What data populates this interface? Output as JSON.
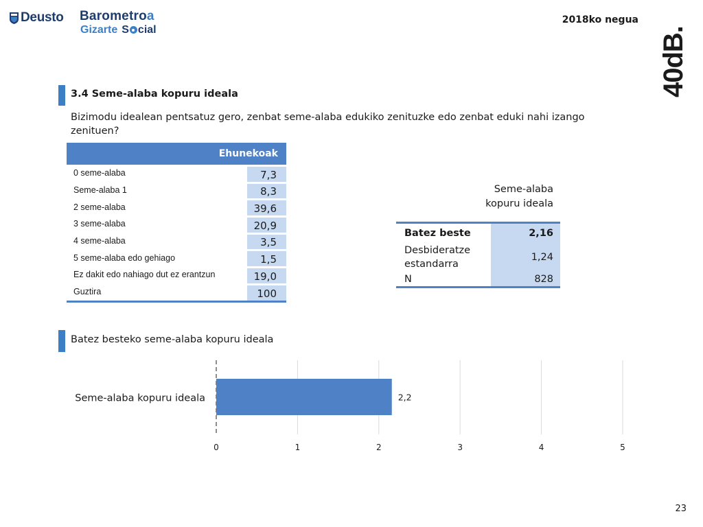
{
  "header": {
    "deusto_logo": "Deusto",
    "barometer_logo_part1": "Barometro",
    "barometer_logo_part2": "a",
    "barometer_logo_line2_a": "Gizarte",
    "barometer_logo_line2_b": "cial",
    "period": "2018ko negua",
    "brand": "40dB."
  },
  "section1": {
    "title": "3.4 Seme-alaba kopuru ideala",
    "question": "Bizimodu idealean pentsatuz gero, zenbat seme-alaba edukiko zenituzke edo zenbat eduki nahi izango zenituen?"
  },
  "freq_table": {
    "header": "Ehunekoak",
    "rows": [
      {
        "label": "0 seme-alaba",
        "value": "7,3"
      },
      {
        "label": "Seme-alaba 1",
        "value": "8,3"
      },
      {
        "label": "2 seme-alaba",
        "value": "39,6"
      },
      {
        "label": "3 seme-alaba",
        "value": "20,9"
      },
      {
        "label": "4 seme-alaba",
        "value": "3,5"
      },
      {
        "label": "5 seme-alaba edo gehiago",
        "value": "1,5"
      },
      {
        "label": "Ez dakit edo nahiago dut ez erantzun",
        "value": "19,0"
      },
      {
        "label": "Guztira",
        "value": "100"
      }
    ]
  },
  "stats": {
    "caption_line1": "Seme-alaba",
    "caption_line2": "kopuru ideala",
    "rows": [
      {
        "label": "Batez beste",
        "value": "2,16",
        "bold": true
      },
      {
        "label": "Desbideratze estandarra",
        "value": "1,24",
        "bold": false
      },
      {
        "label": "N",
        "value": "828",
        "bold": false
      }
    ]
  },
  "section2": {
    "title": "Batez besteko seme-alaba kopuru ideala"
  },
  "chart_data": {
    "type": "bar",
    "orientation": "horizontal",
    "categories": [
      "Seme-alaba kopuru ideala"
    ],
    "values": [
      2.16
    ],
    "data_labels": [
      "2,2"
    ],
    "xlim": [
      0,
      5
    ],
    "xticks": [
      "0",
      "1",
      "2",
      "3",
      "4",
      "5"
    ],
    "grid": true,
    "bar_color": "#4f81c7"
  },
  "page_number": "23"
}
